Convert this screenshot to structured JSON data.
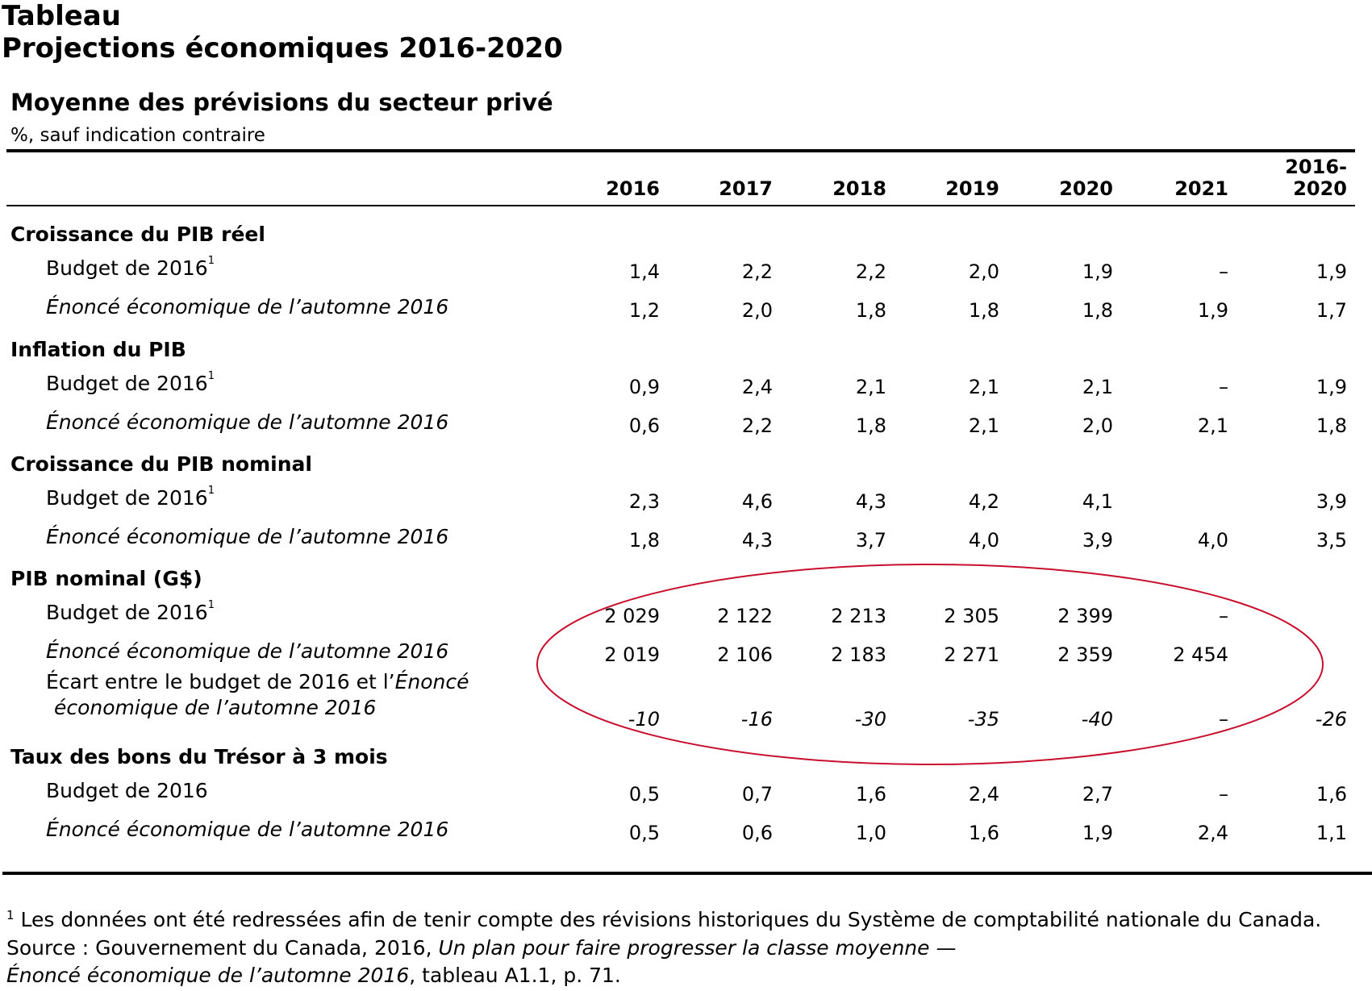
{
  "header": {
    "kicker": "Tableau",
    "title": "Projections économiques 2016-2020",
    "subtitle": "Moyenne des prévisions du secteur privé",
    "unit": "%, sauf indication contraire"
  },
  "chart_data": {
    "type": "table",
    "title": "Projections économiques 2016-2020",
    "subtitle": "Moyenne des prévisions du secteur privé",
    "columns": [
      "2016",
      "2017",
      "2018",
      "2019",
      "2020",
      "2021",
      "2016-2020"
    ],
    "column_last_lines": [
      "2016-",
      "2020"
    ],
    "sections": [
      {
        "name": "Croissance du PIB réel",
        "rows": [
          {
            "label": "Budget de 2016",
            "note": "1",
            "values": [
              "1,4",
              "2,2",
              "2,2",
              "2,0",
              "1,9",
              "–",
              "1,9"
            ]
          },
          {
            "label": "Énoncé économique de l’automne 2016",
            "values": [
              "1,2",
              "2,0",
              "1,8",
              "1,8",
              "1,8",
              "1,9",
              "1,7"
            ]
          }
        ]
      },
      {
        "name": "Inflation du PIB",
        "rows": [
          {
            "label": "Budget de 2016",
            "note": "1",
            "values": [
              "0,9",
              "2,4",
              "2,1",
              "2,1",
              "2,1",
              "–",
              "1,9"
            ]
          },
          {
            "label": "Énoncé économique de l’automne 2016",
            "values": [
              "0,6",
              "2,2",
              "1,8",
              "2,1",
              "2,0",
              "2,1",
              "1,8"
            ]
          }
        ]
      },
      {
        "name": "Croissance du PIB nominal",
        "rows": [
          {
            "label": "Budget de 2016",
            "note": "1",
            "values": [
              "2,3",
              "4,6",
              "4,3",
              "4,2",
              "4,1",
              "",
              "3,9"
            ]
          },
          {
            "label": "Énoncé économique de l’automne 2016",
            "values": [
              "1,8",
              "4,3",
              "3,7",
              "4,0",
              "3,9",
              "4,0",
              "3,5"
            ]
          }
        ]
      },
      {
        "name": "PIB nominal (G$)",
        "rows": [
          {
            "label": "Budget de 2016",
            "note": "1",
            "values": [
              "2 029",
              "2 122",
              "2 213",
              "2 305",
              "2 399",
              "–",
              ""
            ]
          },
          {
            "label": "Énoncé économique de l’automne 2016",
            "values": [
              "2 019",
              "2 106",
              "2 183",
              "2 271",
              "2 359",
              "2 454",
              ""
            ]
          },
          {
            "label_line1_pre": "Écart entre le budget de 2016 et l’",
            "label_line1_it": "Énoncé",
            "label_line2": "économique de l’automne 2016",
            "values": [
              "-10",
              "-16",
              "-30",
              "-35",
              "-40",
              "–",
              "-26"
            ]
          }
        ]
      },
      {
        "name": "Taux des bons du Trésor à 3 mois",
        "rows": [
          {
            "label": "Budget de 2016",
            "values": [
              "0,5",
              "0,7",
              "1,6",
              "2,4",
              "2,7",
              "–",
              "1,6"
            ]
          },
          {
            "label": "Énoncé économique de l’automne 2016",
            "values": [
              "0,5",
              "0,6",
              "1,0",
              "1,6",
              "1,9",
              "2,4",
              "1,1"
            ]
          }
        ]
      }
    ],
    "annotation": {
      "shape": "ellipse",
      "color": "#c8102e"
    }
  },
  "footer": {
    "note_marker": "1",
    "note": " Les données ont été redressées afin de tenir compte des révisions historiques du Système de comptabilité nationale du Canada.",
    "source_pre": "Source : Gouvernement du Canada, 2016, ",
    "source_it": "Un plan pour faire progresser la classe moyenne —",
    "source_it2": "Énoncé économique de l’automne 2016",
    "source_post": ", tableau A1.1, p. 71."
  }
}
